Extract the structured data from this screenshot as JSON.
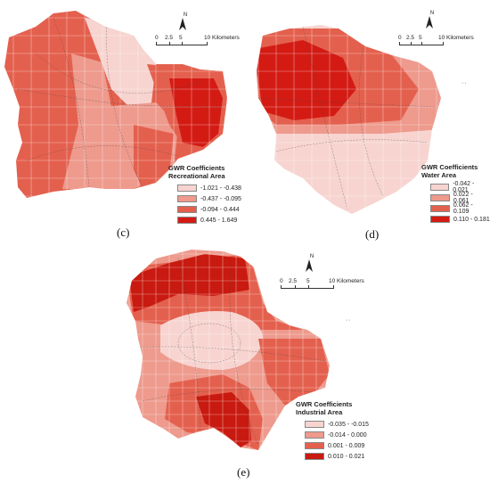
{
  "panels": [
    {
      "id": "c",
      "label": "(c)",
      "legend_title": "GWR Coefficients",
      "legend_subtitle": "Recreational Area",
      "classes": [
        {
          "label": "-1.021 - -0.438",
          "color": "#f7d4d0"
        },
        {
          "label": "-0.437 - -0.095",
          "color": "#ee9a8d"
        },
        {
          "label": "-0.094 - 0.444",
          "color": "#e4604e"
        },
        {
          "label": "0.445 - 1.649",
          "color": "#d31b14"
        }
      ],
      "scale": {
        "ticks": [
          "0",
          "2.5",
          "5",
          "10 Kilometers"
        ]
      },
      "north": "N"
    },
    {
      "id": "d",
      "label": "(d)",
      "legend_title": "GWR Coefficients",
      "legend_subtitle": "Water Area",
      "classes": [
        {
          "label": "-0.042 - 0.021",
          "color": "#f7d4d0"
        },
        {
          "label": "0.022 - 0.061",
          "color": "#ee9a8d"
        },
        {
          "label": "0.062 - 0.109",
          "color": "#e4604e"
        },
        {
          "label": "0.110 - 0.181",
          "color": "#d31b14"
        }
      ],
      "scale": {
        "ticks": [
          "0",
          "2.5",
          "5",
          "10 Kilometers"
        ]
      },
      "north": "N"
    },
    {
      "id": "e",
      "label": "(e)",
      "legend_title": "GWR Coefficients",
      "legend_subtitle": "Industrial Area",
      "classes": [
        {
          "label": "-0.035 - -0.015",
          "color": "#f7d4d0"
        },
        {
          "label": "-0.014 - 0.000",
          "color": "#ee9a8d"
        },
        {
          "label": "0.001 - 0.009",
          "color": "#e4604e"
        },
        {
          "label": "0.010 - 0.021",
          "color": "#c81a10"
        }
      ],
      "scale": {
        "ticks": [
          "0",
          "2.5",
          "5",
          "10 Kilometers"
        ]
      },
      "north": "N"
    }
  ]
}
